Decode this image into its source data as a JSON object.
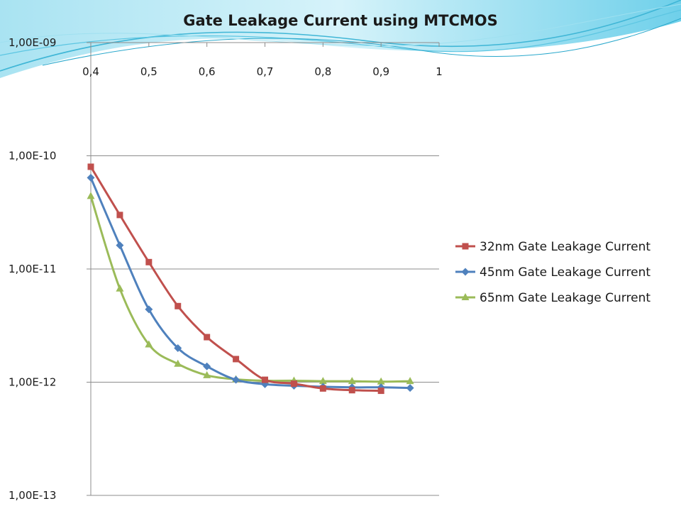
{
  "colors": {
    "banner_light": "#bfeaf5",
    "banner_mid": "#7ed6ec",
    "banner_dark": "#3fb6d6",
    "grid": "#8c8c8c",
    "axis": "#8c8c8c"
  },
  "chart_data": {
    "type": "line",
    "title": "Gate Leakage Current using MTCMOS",
    "xlabel": "",
    "ylabel": "",
    "x_axis_position": "top",
    "xlim": [
      0.4,
      1.0
    ],
    "ylim": [
      1e-13,
      1e-09
    ],
    "y_scale": "log",
    "grid": "horizontal major",
    "legend_position": "right",
    "x_ticks": [
      {
        "value": 0.4,
        "label": "0,4"
      },
      {
        "value": 0.5,
        "label": "0,5"
      },
      {
        "value": 0.6,
        "label": "0,6"
      },
      {
        "value": 0.7,
        "label": "0,7"
      },
      {
        "value": 0.8,
        "label": "0,8"
      },
      {
        "value": 0.9,
        "label": "0,9"
      },
      {
        "value": 1.0,
        "label": "1"
      }
    ],
    "y_ticks": [
      {
        "value": 1e-09,
        "label": "1,00E-09"
      },
      {
        "value": 1e-10,
        "label": "1,00E-10"
      },
      {
        "value": 1e-11,
        "label": "1,00E-11"
      },
      {
        "value": 1e-12,
        "label": "1,00E-12"
      },
      {
        "value": 1e-13,
        "label": "1,00E-13"
      }
    ],
    "series": [
      {
        "name": "32nm Gate Leakage Current",
        "color": "#c0504d",
        "marker": "square",
        "x": [
          0.4,
          0.45,
          0.5,
          0.55,
          0.6,
          0.65,
          0.7,
          0.75,
          0.8,
          0.85,
          0.9
        ],
        "y": [
          8e-11,
          3e-11,
          1.15e-11,
          4.7e-12,
          2.5e-12,
          1.6e-12,
          1.05e-12,
          9.7e-13,
          8.8e-13,
          8.5e-13,
          8.4e-13
        ]
      },
      {
        "name": "45nm Gate Leakage Current",
        "color": "#4f81bd",
        "marker": "diamond",
        "x": [
          0.4,
          0.45,
          0.5,
          0.55,
          0.6,
          0.65,
          0.7,
          0.75,
          0.8,
          0.85,
          0.9,
          0.95
        ],
        "y": [
          6.4e-11,
          1.62e-11,
          4.4e-12,
          2e-12,
          1.38e-12,
          1.05e-12,
          9.6e-13,
          9.3e-13,
          9.1e-13,
          9e-13,
          9e-13,
          8.9e-13
        ]
      },
      {
        "name": "65nm Gate Leakage Current",
        "color": "#9bbb59",
        "marker": "triangle",
        "x": [
          0.4,
          0.45,
          0.5,
          0.55,
          0.6,
          0.65,
          0.7,
          0.75,
          0.8,
          0.85,
          0.9,
          0.95
        ],
        "y": [
          4.4e-11,
          6.7e-12,
          2.15e-12,
          1.45e-12,
          1.15e-12,
          1.06e-12,
          1.03e-12,
          1.03e-12,
          1.02e-12,
          1.02e-12,
          1.01e-12,
          1.02e-12
        ]
      }
    ]
  }
}
